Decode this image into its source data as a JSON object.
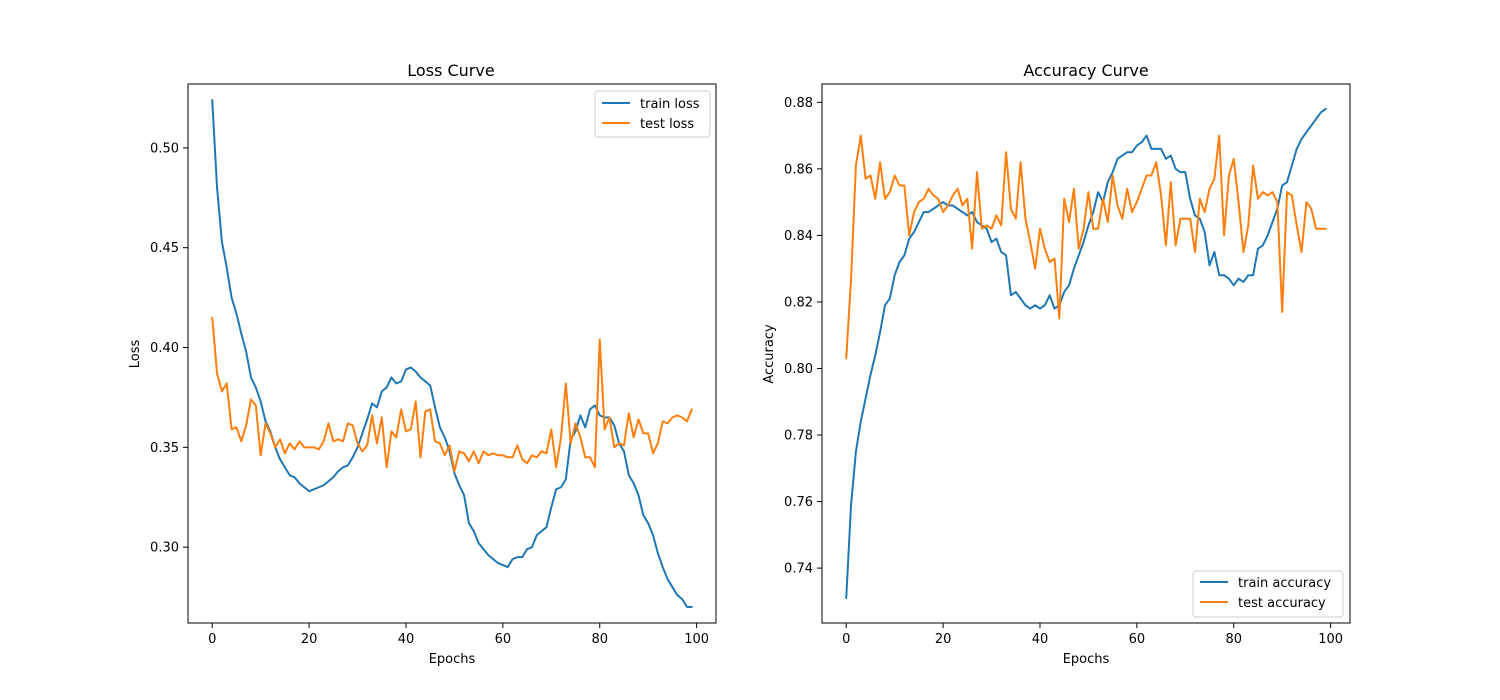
{
  "chart_data": [
    {
      "type": "line",
      "title": "Loss Curve",
      "xlabel": "Epochs",
      "ylabel": "Loss",
      "xlim": [
        -5,
        104
      ],
      "ylim": [
        0.262,
        0.532
      ],
      "xticks": [
        0,
        20,
        40,
        60,
        80,
        100
      ],
      "yticks": [
        0.3,
        0.35,
        0.4,
        0.45,
        0.5
      ],
      "ytick_labels": [
        "0.30",
        "0.35",
        "0.40",
        "0.45",
        "0.50"
      ],
      "legend_position": "top-right",
      "series": [
        {
          "name": "train loss",
          "color": "#1f77b4",
          "values": [
            0.524,
            0.48,
            0.453,
            0.44,
            0.425,
            0.417,
            0.407,
            0.398,
            0.385,
            0.38,
            0.373,
            0.363,
            0.358,
            0.35,
            0.344,
            0.34,
            0.336,
            0.335,
            0.332,
            0.33,
            0.328,
            0.329,
            0.33,
            0.331,
            0.333,
            0.335,
            0.338,
            0.34,
            0.341,
            0.345,
            0.35,
            0.357,
            0.364,
            0.372,
            0.37,
            0.378,
            0.38,
            0.385,
            0.382,
            0.383,
            0.389,
            0.39,
            0.388,
            0.385,
            0.383,
            0.381,
            0.37,
            0.36,
            0.355,
            0.348,
            0.337,
            0.331,
            0.326,
            0.312,
            0.308,
            0.302,
            0.299,
            0.296,
            0.294,
            0.292,
            0.291,
            0.29,
            0.294,
            0.295,
            0.295,
            0.299,
            0.3,
            0.306,
            0.308,
            0.31,
            0.32,
            0.329,
            0.33,
            0.334,
            0.354,
            0.358,
            0.366,
            0.36,
            0.369,
            0.371,
            0.366,
            0.365,
            0.365,
            0.361,
            0.352,
            0.348,
            0.336,
            0.332,
            0.326,
            0.316,
            0.312,
            0.306,
            0.297,
            0.29,
            0.284,
            0.28,
            0.276,
            0.274,
            0.27,
            0.27
          ]
        },
        {
          "name": "test loss",
          "color": "#ff7f0e",
          "values": [
            0.415,
            0.387,
            0.378,
            0.382,
            0.359,
            0.36,
            0.353,
            0.361,
            0.374,
            0.371,
            0.346,
            0.362,
            0.357,
            0.35,
            0.354,
            0.347,
            0.352,
            0.349,
            0.353,
            0.35,
            0.35,
            0.35,
            0.349,
            0.353,
            0.362,
            0.353,
            0.354,
            0.353,
            0.362,
            0.361,
            0.352,
            0.348,
            0.351,
            0.366,
            0.352,
            0.365,
            0.34,
            0.358,
            0.355,
            0.369,
            0.358,
            0.359,
            0.373,
            0.345,
            0.368,
            0.369,
            0.353,
            0.352,
            0.346,
            0.351,
            0.338,
            0.348,
            0.347,
            0.343,
            0.348,
            0.342,
            0.348,
            0.346,
            0.347,
            0.346,
            0.346,
            0.345,
            0.345,
            0.351,
            0.344,
            0.342,
            0.346,
            0.345,
            0.348,
            0.347,
            0.359,
            0.34,
            0.355,
            0.382,
            0.352,
            0.362,
            0.355,
            0.345,
            0.345,
            0.34,
            0.404,
            0.359,
            0.365,
            0.35,
            0.352,
            0.351,
            0.367,
            0.355,
            0.364,
            0.357,
            0.357,
            0.347,
            0.352,
            0.363,
            0.362,
            0.365,
            0.366,
            0.365,
            0.363,
            0.369
          ]
        }
      ]
    },
    {
      "type": "line",
      "title": "Accuracy Curve",
      "xlabel": "Epochs",
      "ylabel": "Accuracy",
      "xlim": [
        -5,
        104
      ],
      "ylim": [
        0.7235,
        0.8855
      ],
      "xticks": [
        0,
        20,
        40,
        60,
        80,
        100
      ],
      "yticks": [
        0.74,
        0.76,
        0.78,
        0.8,
        0.82,
        0.84,
        0.86,
        0.88
      ],
      "ytick_labels": [
        "0.74",
        "0.76",
        "0.78",
        "0.80",
        "0.82",
        "0.84",
        "0.86",
        "0.88"
      ],
      "legend_position": "bottom-right",
      "series": [
        {
          "name": "train accuracy",
          "color": "#1f77b4",
          "values": [
            0.731,
            0.759,
            0.775,
            0.784,
            0.791,
            0.798,
            0.804,
            0.811,
            0.819,
            0.821,
            0.828,
            0.832,
            0.834,
            0.839,
            0.841,
            0.844,
            0.847,
            0.847,
            0.848,
            0.849,
            0.85,
            0.849,
            0.849,
            0.848,
            0.847,
            0.846,
            0.847,
            0.844,
            0.843,
            0.842,
            0.838,
            0.839,
            0.835,
            0.834,
            0.822,
            0.823,
            0.821,
            0.819,
            0.818,
            0.819,
            0.818,
            0.819,
            0.822,
            0.818,
            0.819,
            0.823,
            0.825,
            0.83,
            0.834,
            0.838,
            0.843,
            0.847,
            0.853,
            0.85,
            0.856,
            0.859,
            0.863,
            0.864,
            0.865,
            0.865,
            0.867,
            0.868,
            0.87,
            0.866,
            0.866,
            0.866,
            0.863,
            0.864,
            0.86,
            0.859,
            0.859,
            0.851,
            0.846,
            0.845,
            0.841,
            0.831,
            0.835,
            0.828,
            0.828,
            0.827,
            0.825,
            0.827,
            0.826,
            0.828,
            0.828,
            0.836,
            0.837,
            0.84,
            0.844,
            0.848,
            0.855,
            0.856,
            0.861,
            0.866,
            0.869,
            0.871,
            0.873,
            0.875,
            0.877,
            0.878
          ]
        },
        {
          "name": "test accuracy",
          "color": "#ff7f0e",
          "values": [
            0.803,
            0.827,
            0.861,
            0.87,
            0.857,
            0.858,
            0.851,
            0.862,
            0.851,
            0.853,
            0.858,
            0.855,
            0.855,
            0.84,
            0.847,
            0.85,
            0.851,
            0.854,
            0.852,
            0.851,
            0.847,
            0.849,
            0.852,
            0.854,
            0.849,
            0.851,
            0.836,
            0.859,
            0.842,
            0.843,
            0.842,
            0.846,
            0.843,
            0.865,
            0.848,
            0.845,
            0.862,
            0.845,
            0.838,
            0.83,
            0.842,
            0.836,
            0.832,
            0.833,
            0.815,
            0.851,
            0.844,
            0.854,
            0.836,
            0.842,
            0.853,
            0.842,
            0.842,
            0.851,
            0.844,
            0.858,
            0.849,
            0.845,
            0.854,
            0.847,
            0.85,
            0.854,
            0.858,
            0.858,
            0.862,
            0.852,
            0.837,
            0.856,
            0.837,
            0.845,
            0.845,
            0.845,
            0.835,
            0.851,
            0.847,
            0.854,
            0.857,
            0.87,
            0.84,
            0.858,
            0.863,
            0.85,
            0.835,
            0.843,
            0.861,
            0.851,
            0.853,
            0.852,
            0.853,
            0.85,
            0.817,
            0.853,
            0.852,
            0.843,
            0.835,
            0.85,
            0.848,
            0.842,
            0.842,
            0.842
          ]
        }
      ]
    }
  ]
}
